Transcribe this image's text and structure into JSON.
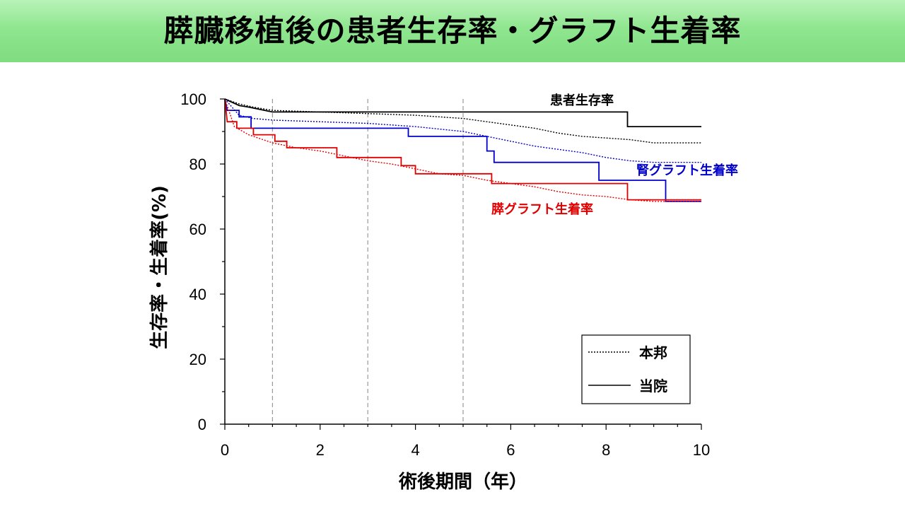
{
  "slide": {
    "title": "膵臓移植後の患者生存率・グラフト生着率"
  },
  "chart_data": {
    "type": "line",
    "title": "",
    "xlabel": "術後期間（年）",
    "ylabel": "生存率・生着率(%)",
    "xlim": [
      0,
      10
    ],
    "ylim": [
      0,
      100
    ],
    "x_ticks": [
      0,
      2,
      4,
      6,
      8,
      10
    ],
    "y_ticks": [
      0,
      20,
      40,
      60,
      80,
      100
    ],
    "vertical_reference_lines": [
      1,
      3,
      5
    ],
    "legend": {
      "position": "bottom-right",
      "entries": [
        {
          "label": "本邦",
          "style": "dotted"
        },
        {
          "label": "当院",
          "style": "solid"
        }
      ]
    },
    "series_labels": [
      {
        "text": "患者生存率",
        "color": "#000000"
      },
      {
        "text": "腎グラフト生着率",
        "color": "#0000cc"
      },
      {
        "text": "膵グラフト生着率",
        "color": "#e00000"
      }
    ],
    "series": [
      {
        "group": "患者生存率",
        "source": "当院",
        "color": "#000000",
        "style": "solid",
        "points": [
          [
            0,
            100
          ],
          [
            0.3,
            98
          ],
          [
            0.5,
            97.5
          ],
          [
            1,
            96
          ],
          [
            5,
            96
          ],
          [
            8.45,
            96
          ],
          [
            8.45,
            91.5
          ],
          [
            10,
            91.5
          ]
        ]
      },
      {
        "group": "患者生存率",
        "source": "本邦",
        "color": "#000000",
        "style": "dotted",
        "points": [
          [
            0,
            100
          ],
          [
            0.3,
            98.5
          ],
          [
            0.6,
            97.5
          ],
          [
            1,
            96.5
          ],
          [
            2,
            96
          ],
          [
            3,
            95.5
          ],
          [
            4,
            95
          ],
          [
            5,
            94
          ],
          [
            5.5,
            93
          ],
          [
            6,
            92
          ],
          [
            6.5,
            91
          ],
          [
            7,
            89.5
          ],
          [
            7.5,
            88.5
          ],
          [
            8,
            88
          ],
          [
            8.5,
            87.5
          ],
          [
            9,
            86.5
          ],
          [
            10,
            86.5
          ]
        ]
      },
      {
        "group": "腎グラフト生着率",
        "source": "当院",
        "color": "#0000cc",
        "style": "solid",
        "points": [
          [
            0,
            100
          ],
          [
            0.05,
            96.5
          ],
          [
            0.3,
            96.5
          ],
          [
            0.3,
            94.5
          ],
          [
            0.55,
            94.5
          ],
          [
            0.55,
            91
          ],
          [
            3.85,
            91
          ],
          [
            3.85,
            88.5
          ],
          [
            5.5,
            88.5
          ],
          [
            5.5,
            84
          ],
          [
            5.65,
            84
          ],
          [
            5.65,
            80.5
          ],
          [
            7.85,
            80.5
          ],
          [
            7.85,
            75
          ],
          [
            9.25,
            75
          ],
          [
            9.25,
            68.5
          ],
          [
            10,
            68.5
          ]
        ]
      },
      {
        "group": "腎グラフト生着率",
        "source": "本邦",
        "color": "#0000cc",
        "style": "dotted",
        "points": [
          [
            0,
            100
          ],
          [
            0.3,
            95
          ],
          [
            0.6,
            94
          ],
          [
            1,
            93.5
          ],
          [
            2,
            93
          ],
          [
            3,
            92.5
          ],
          [
            4,
            91.5
          ],
          [
            5,
            90
          ],
          [
            5.5,
            88.5
          ],
          [
            6,
            87
          ],
          [
            6.5,
            85.5
          ],
          [
            7,
            84.5
          ],
          [
            7.5,
            83.5
          ],
          [
            8,
            82
          ],
          [
            8.5,
            81
          ],
          [
            9,
            80.5
          ],
          [
            10,
            80.5
          ]
        ]
      },
      {
        "group": "膵グラフト生着率",
        "source": "当院",
        "color": "#e00000",
        "style": "solid",
        "points": [
          [
            0,
            100
          ],
          [
            0.05,
            93
          ],
          [
            0.25,
            93
          ],
          [
            0.25,
            91
          ],
          [
            0.6,
            91
          ],
          [
            0.6,
            89
          ],
          [
            1.05,
            89
          ],
          [
            1.05,
            87
          ],
          [
            1.3,
            87
          ],
          [
            1.3,
            85
          ],
          [
            2.35,
            85
          ],
          [
            2.35,
            82
          ],
          [
            3.7,
            82
          ],
          [
            3.7,
            79.5
          ],
          [
            4,
            79.5
          ],
          [
            4,
            77
          ],
          [
            5.6,
            77
          ],
          [
            5.6,
            74
          ],
          [
            8.45,
            74
          ],
          [
            8.45,
            69
          ],
          [
            10,
            69
          ]
        ]
      },
      {
        "group": "膵グラフト生着率",
        "source": "本邦",
        "color": "#e00000",
        "style": "dotted",
        "points": [
          [
            0,
            100
          ],
          [
            0.2,
            91.5
          ],
          [
            0.5,
            89
          ],
          [
            1,
            86.5
          ],
          [
            1.5,
            85
          ],
          [
            2,
            84
          ],
          [
            2.5,
            82.5
          ],
          [
            3,
            81
          ],
          [
            3.5,
            80
          ],
          [
            4,
            78.5
          ],
          [
            4.5,
            77
          ],
          [
            5,
            76.5
          ],
          [
            5.5,
            75
          ],
          [
            6,
            74
          ],
          [
            6.5,
            73
          ],
          [
            7,
            71.5
          ],
          [
            7.5,
            70.5
          ],
          [
            8,
            70
          ],
          [
            8.5,
            69
          ],
          [
            9,
            68.5
          ],
          [
            10,
            68.5
          ]
        ]
      }
    ]
  }
}
